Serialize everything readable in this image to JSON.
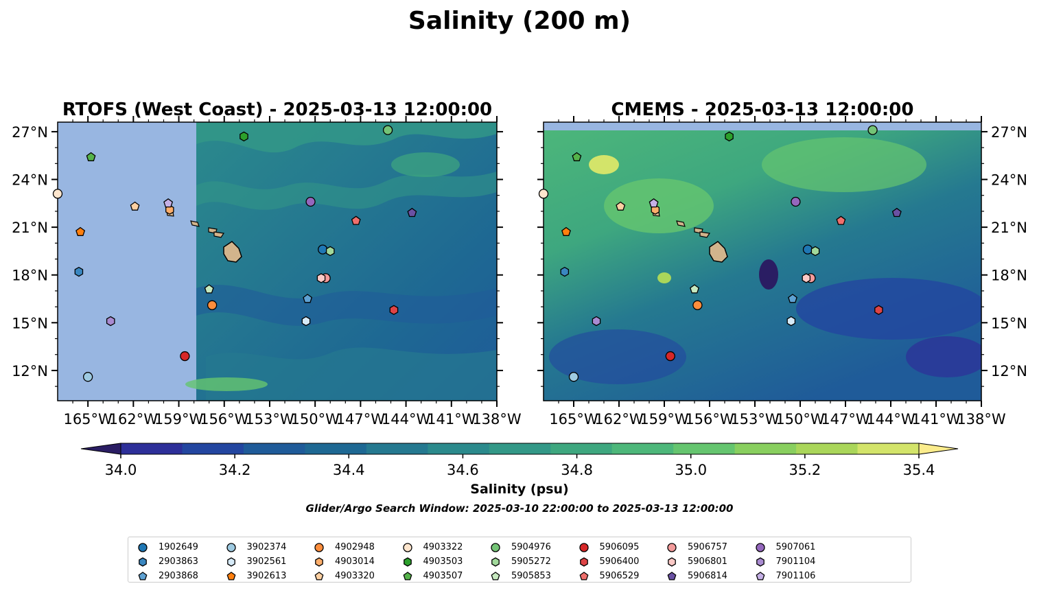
{
  "figure": {
    "title": "Salinity (200 m)",
    "colorbar_label": "Salinity (psu)",
    "search_window": "Glider/Argo Search Window: 2025-03-10 22:00:00 to 2025-03-13 12:00:00",
    "colorbar_ticks": [
      "34.0",
      "34.2",
      "34.4",
      "34.6",
      "34.8",
      "35.0",
      "35.2",
      "35.4"
    ],
    "colorbar_colors": [
      "#2a1d63",
      "#2d2f99",
      "#2346a0",
      "#1f5b99",
      "#1e6893",
      "#257990",
      "#2b8a8c",
      "#339887",
      "#3ea77f",
      "#4db77a",
      "#65c56f",
      "#89cf5f",
      "#aad65a",
      "#d3e46a",
      "#fbec8c"
    ],
    "land_color": "#d2b48c",
    "nodata_color": "#98b6e1"
  },
  "panels": [
    {
      "title": "RTOFS (West Coast) - 2025-03-13 12:00:00"
    },
    {
      "title": "CMEMS - 2025-03-13 12:00:00"
    }
  ],
  "axes": {
    "x_ticks": [
      "165°W",
      "162°W",
      "159°W",
      "156°W",
      "153°W",
      "150°W",
      "147°W",
      "144°W",
      "141°W",
      "138°W"
    ],
    "y_ticks": [
      "27°N",
      "24°N",
      "21°N",
      "18°N",
      "15°N",
      "12°N"
    ]
  },
  "chart_data": {
    "type": "scatter",
    "x_range": [
      -167,
      -138
    ],
    "y_range": [
      10.1,
      27.6
    ],
    "colorbar_range": [
      34.0,
      35.4
    ],
    "floats": [
      {
        "id": "1902649",
        "marker": "circle",
        "color": "#1f77b4",
        "lon": -149.5,
        "lat": 19.6
      },
      {
        "id": "2903863",
        "marker": "hexagon",
        "color": "#3a87c0",
        "lon": -165.6,
        "lat": 18.2
      },
      {
        "id": "2903868",
        "marker": "pentagon",
        "color": "#5fa2d3",
        "lon": -150.5,
        "lat": 16.5
      },
      {
        "id": "3902374",
        "marker": "circle",
        "color": "#9ecae1",
        "lon": -165.0,
        "lat": 11.6
      },
      {
        "id": "3902561",
        "marker": "hexagon",
        "color": "#d6eaf7",
        "lon": -150.6,
        "lat": 15.1
      },
      {
        "id": "3902613",
        "marker": "pentagon",
        "color": "#ff7f0e",
        "lon": -165.5,
        "lat": 20.7
      },
      {
        "id": "4902948",
        "marker": "circle",
        "color": "#fd8d3c",
        "lon": -156.8,
        "lat": 16.1
      },
      {
        "id": "4903014",
        "marker": "hexagon",
        "color": "#fdae6b",
        "lon": -159.6,
        "lat": 22.1
      },
      {
        "id": "4903320",
        "marker": "pentagon",
        "color": "#fdd0a2",
        "lon": -161.9,
        "lat": 22.3
      },
      {
        "id": "4903322",
        "marker": "circle",
        "color": "#fee6ce",
        "lon": -167.0,
        "lat": 23.1
      },
      {
        "id": "4903503",
        "marker": "hexagon",
        "color": "#2ca02c",
        "lon": -154.7,
        "lat": 26.7
      },
      {
        "id": "4903507",
        "marker": "pentagon",
        "color": "#55b34a",
        "lon": -164.8,
        "lat": 25.4
      },
      {
        "id": "5904976",
        "marker": "circle",
        "color": "#74c476",
        "lon": -145.2,
        "lat": 27.1
      },
      {
        "id": "5905272",
        "marker": "hexagon",
        "color": "#a1d99b",
        "lon": -149.0,
        "lat": 19.5
      },
      {
        "id": "5905853",
        "marker": "pentagon",
        "color": "#c7e9c0",
        "lon": -157.0,
        "lat": 17.1
      },
      {
        "id": "5906095",
        "marker": "circle",
        "color": "#d62728",
        "lon": -158.6,
        "lat": 12.9
      },
      {
        "id": "5906400",
        "marker": "hexagon",
        "color": "#de4446",
        "lon": -144.8,
        "lat": 15.8
      },
      {
        "id": "5906529",
        "marker": "pentagon",
        "color": "#ef6f6c",
        "lon": -147.3,
        "lat": 21.4
      },
      {
        "id": "5906757",
        "marker": "circle",
        "color": "#f39b9b",
        "lon": -149.3,
        "lat": 17.8
      },
      {
        "id": "5906801",
        "marker": "hexagon",
        "color": "#fbc9c6",
        "lon": -149.6,
        "lat": 17.8
      },
      {
        "id": "5906814",
        "marker": "pentagon",
        "color": "#6a51a3",
        "lon": -143.6,
        "lat": 21.9
      },
      {
        "id": "5907061",
        "marker": "circle",
        "color": "#9467bd",
        "lon": -150.3,
        "lat": 22.6
      },
      {
        "id": "7901104",
        "marker": "hexagon",
        "color": "#a98bd1",
        "lon": -163.5,
        "lat": 15.1
      },
      {
        "id": "7901106",
        "marker": "pentagon",
        "color": "#c5b0e6",
        "lon": -159.7,
        "lat": 22.5
      }
    ]
  }
}
